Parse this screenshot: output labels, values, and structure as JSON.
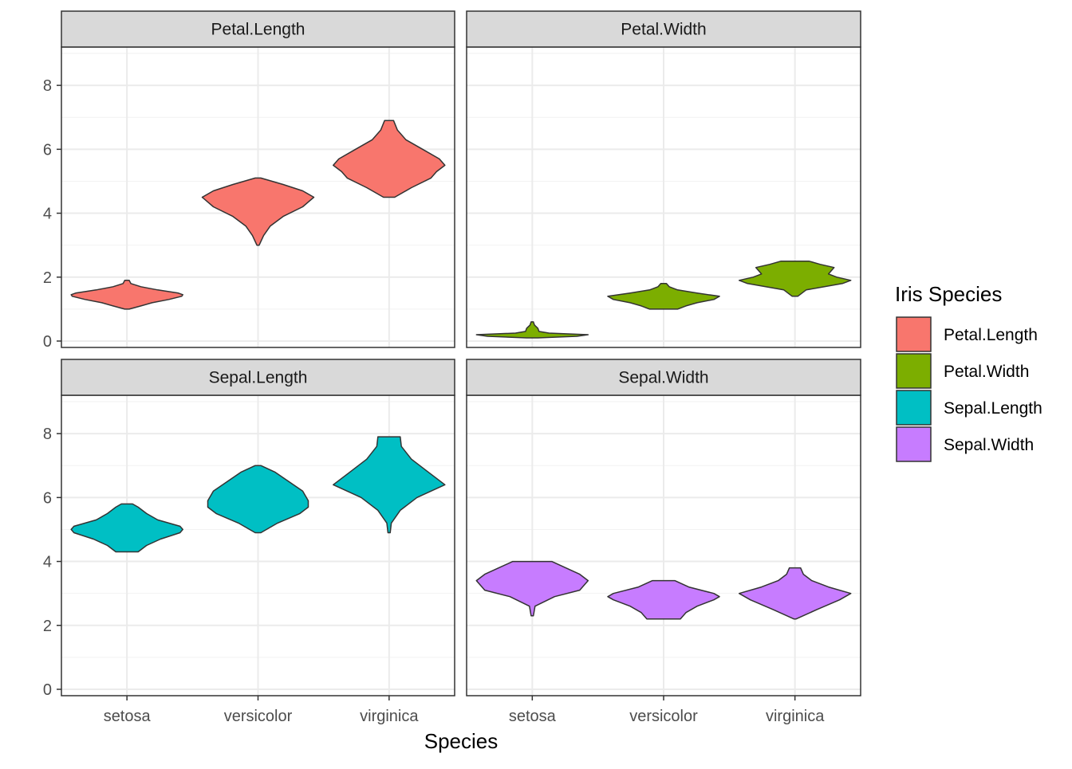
{
  "chart_data": {
    "type": "violin",
    "facet_by": "measurement",
    "facets": [
      {
        "strip": "Petal.Length",
        "fill": "#F8766D",
        "violins": [
          {
            "category": "setosa",
            "min": 1.0,
            "max": 1.9,
            "profile": [
              [
                1.0,
                0.04
              ],
              [
                1.1,
                0.25
              ],
              [
                1.2,
                0.45
              ],
              [
                1.3,
                0.75
              ],
              [
                1.4,
                0.98
              ],
              [
                1.45,
                1.0
              ],
              [
                1.5,
                0.92
              ],
              [
                1.6,
                0.55
              ],
              [
                1.7,
                0.25
              ],
              [
                1.8,
                0.07
              ],
              [
                1.9,
                0.04
              ]
            ]
          },
          {
            "category": "versicolor",
            "min": 3.0,
            "max": 5.1,
            "profile": [
              [
                3.0,
                0.02
              ],
              [
                3.3,
                0.1
              ],
              [
                3.6,
                0.22
              ],
              [
                3.9,
                0.45
              ],
              [
                4.2,
                0.8
              ],
              [
                4.5,
                1.0
              ],
              [
                4.7,
                0.8
              ],
              [
                4.9,
                0.45
              ],
              [
                5.1,
                0.05
              ]
            ]
          },
          {
            "category": "virginica",
            "min": 4.5,
            "max": 6.9,
            "profile": [
              [
                4.5,
                0.1
              ],
              [
                4.8,
                0.4
              ],
              [
                5.1,
                0.75
              ],
              [
                5.3,
                0.85
              ],
              [
                5.5,
                1.0
              ],
              [
                5.7,
                0.9
              ],
              [
                6.0,
                0.6
              ],
              [
                6.3,
                0.3
              ],
              [
                6.6,
                0.15
              ],
              [
                6.9,
                0.08
              ]
            ]
          }
        ]
      },
      {
        "strip": "Petal.Width",
        "fill": "#7CAE00",
        "violins": [
          {
            "category": "setosa",
            "min": 0.1,
            "max": 0.6,
            "profile": [
              [
                0.1,
                0.1
              ],
              [
                0.15,
                0.8
              ],
              [
                0.2,
                1.0
              ],
              [
                0.25,
                0.3
              ],
              [
                0.3,
                0.12
              ],
              [
                0.4,
                0.1
              ],
              [
                0.5,
                0.04
              ],
              [
                0.6,
                0.02
              ]
            ]
          },
          {
            "category": "versicolor",
            "min": 1.0,
            "max": 1.8,
            "profile": [
              [
                1.0,
                0.25
              ],
              [
                1.1,
                0.4
              ],
              [
                1.2,
                0.6
              ],
              [
                1.3,
                0.9
              ],
              [
                1.4,
                1.0
              ],
              [
                1.5,
                0.6
              ],
              [
                1.6,
                0.25
              ],
              [
                1.7,
                0.1
              ],
              [
                1.8,
                0.05
              ]
            ]
          },
          {
            "category": "virginica",
            "min": 1.4,
            "max": 2.5,
            "profile": [
              [
                1.4,
                0.05
              ],
              [
                1.6,
                0.2
              ],
              [
                1.8,
                0.85
              ],
              [
                1.9,
                1.0
              ],
              [
                2.0,
                0.75
              ],
              [
                2.1,
                0.6
              ],
              [
                2.3,
                0.7
              ],
              [
                2.4,
                0.45
              ],
              [
                2.5,
                0.25
              ]
            ]
          }
        ]
      },
      {
        "strip": "Sepal.Length",
        "fill": "#00BFC4",
        "violins": [
          {
            "category": "setosa",
            "min": 4.3,
            "max": 5.8,
            "profile": [
              [
                4.3,
                0.2
              ],
              [
                4.5,
                0.35
              ],
              [
                4.7,
                0.6
              ],
              [
                4.9,
                0.95
              ],
              [
                5.0,
                1.0
              ],
              [
                5.1,
                0.95
              ],
              [
                5.3,
                0.55
              ],
              [
                5.5,
                0.35
              ],
              [
                5.7,
                0.2
              ],
              [
                5.8,
                0.1
              ]
            ]
          },
          {
            "category": "versicolor",
            "min": 4.9,
            "max": 7.0,
            "profile": [
              [
                4.9,
                0.05
              ],
              [
                5.2,
                0.35
              ],
              [
                5.5,
                0.75
              ],
              [
                5.7,
                0.9
              ],
              [
                5.9,
                0.9
              ],
              [
                6.2,
                0.8
              ],
              [
                6.5,
                0.55
              ],
              [
                6.8,
                0.3
              ],
              [
                7.0,
                0.05
              ]
            ]
          },
          {
            "category": "virginica",
            "min": 4.9,
            "max": 7.9,
            "profile": [
              [
                4.9,
                0.02
              ],
              [
                5.2,
                0.04
              ],
              [
                5.6,
                0.2
              ],
              [
                6.0,
                0.5
              ],
              [
                6.4,
                1.0
              ],
              [
                6.8,
                0.7
              ],
              [
                7.2,
                0.4
              ],
              [
                7.6,
                0.22
              ],
              [
                7.9,
                0.2
              ]
            ]
          }
        ]
      },
      {
        "strip": "Sepal.Width",
        "fill": "#C77CFF",
        "violins": [
          {
            "category": "setosa",
            "min": 2.3,
            "max": 4.0,
            "profile": [
              [
                2.3,
                0.02
              ],
              [
                2.6,
                0.05
              ],
              [
                2.9,
                0.4
              ],
              [
                3.1,
                0.85
              ],
              [
                3.4,
                1.0
              ],
              [
                3.6,
                0.85
              ],
              [
                3.8,
                0.6
              ],
              [
                4.0,
                0.35
              ]
            ]
          },
          {
            "category": "versicolor",
            "min": 2.2,
            "max": 3.4,
            "profile": [
              [
                2.2,
                0.3
              ],
              [
                2.4,
                0.4
              ],
              [
                2.6,
                0.6
              ],
              [
                2.8,
                0.9
              ],
              [
                2.9,
                1.0
              ],
              [
                3.0,
                0.9
              ],
              [
                3.2,
                0.45
              ],
              [
                3.4,
                0.2
              ]
            ]
          },
          {
            "category": "virginica",
            "min": 2.2,
            "max": 3.8,
            "profile": [
              [
                2.2,
                0.02
              ],
              [
                2.5,
                0.4
              ],
              [
                2.8,
                0.8
              ],
              [
                3.0,
                1.0
              ],
              [
                3.2,
                0.6
              ],
              [
                3.4,
                0.3
              ],
              [
                3.6,
                0.15
              ],
              [
                3.8,
                0.1
              ]
            ]
          }
        ]
      }
    ],
    "categories": [
      "setosa",
      "versicolor",
      "virginica"
    ],
    "ylim": [
      -0.2,
      9.2
    ],
    "y_ticks": [
      "0",
      "2",
      "4",
      "6",
      "8"
    ],
    "xlabel": "Species",
    "ylabel": "",
    "legend": {
      "title": "Iris Species",
      "position": "right",
      "entries": [
        {
          "label": "Petal.Length",
          "color": "#F8766D"
        },
        {
          "label": "Petal.Width",
          "color": "#7CAE00"
        },
        {
          "label": "Sepal.Length",
          "color": "#00BFC4"
        },
        {
          "label": "Sepal.Width",
          "color": "#C77CFF"
        }
      ]
    },
    "grid": true,
    "theme": "bw"
  }
}
